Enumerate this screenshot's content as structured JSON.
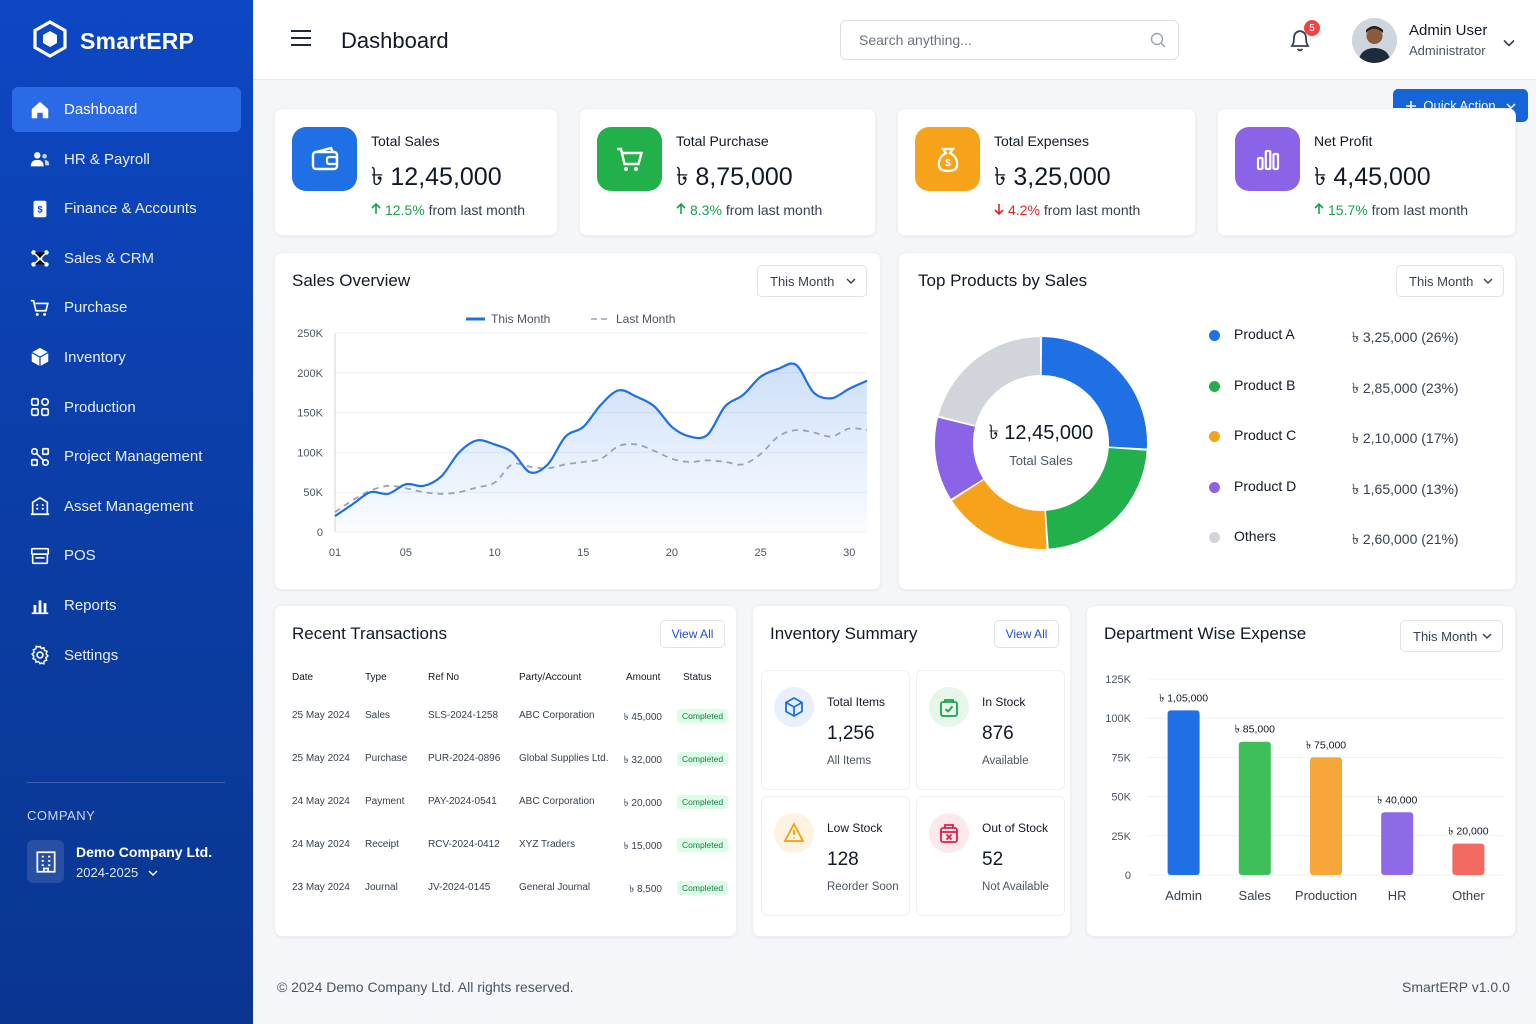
{
  "brand": {
    "name": "SmartERP"
  },
  "nav": [
    {
      "label": "Dashboard",
      "icon": "home-icon",
      "active": true
    },
    {
      "label": "HR & Payroll",
      "icon": "users-icon"
    },
    {
      "label": "Finance & Accounts",
      "icon": "ledger-icon"
    },
    {
      "label": "Sales & CRM",
      "icon": "network-icon"
    },
    {
      "label": "Purchase",
      "icon": "cart-icon"
    },
    {
      "label": "Inventory",
      "icon": "box-icon"
    },
    {
      "label": "Production",
      "icon": "blocks-icon"
    },
    {
      "label": "Project Management",
      "icon": "workflow-icon"
    },
    {
      "label": "Asset Management",
      "icon": "building-icon"
    },
    {
      "label": "POS",
      "icon": "register-icon"
    },
    {
      "label": "Reports",
      "icon": "bar-chart-icon"
    },
    {
      "label": "Settings",
      "icon": "gear-icon"
    }
  ],
  "company": {
    "section_label": "COMPANY",
    "name": "Demo Company Ltd.",
    "year": "2024-2025"
  },
  "header": {
    "title": "Dashboard",
    "search_placeholder": "Search anything...",
    "notification_count": "5",
    "user_name": "Admin User",
    "user_role": "Administrator",
    "quick_action": "Quick Action"
  },
  "kpis": [
    {
      "label": "Total Sales",
      "value": "৳ 12,45,000",
      "change": "12.5%",
      "direction": "up",
      "suffix": "from last month",
      "color": "#1f6fe5",
      "icon": "wallet-icon"
    },
    {
      "label": "Total Purchase",
      "value": "৳ 8,75,000",
      "change": "8.3%",
      "direction": "up",
      "suffix": "from last month",
      "color": "#22b04b",
      "icon": "cart-icon"
    },
    {
      "label": "Total Expenses",
      "value": "৳ 3,25,000",
      "change": "4.2%",
      "direction": "down",
      "suffix": "from last month",
      "color": "#f7a21b",
      "icon": "money-bag-icon"
    },
    {
      "label": "Net Profit",
      "value": "৳ 4,45,000",
      "change": "15.7%",
      "direction": "up",
      "suffix": "from last month",
      "color": "#8a63e6",
      "icon": "bar-chart-icon"
    }
  ],
  "sales_overview": {
    "title": "Sales Overview",
    "filter": "This Month",
    "chart_data": {
      "type": "line",
      "x_ticks": [
        "01",
        "05",
        "10",
        "15",
        "20",
        "25",
        "30"
      ],
      "y_ticks": [
        "250K",
        "200K",
        "150K",
        "100K",
        "50K",
        "0"
      ],
      "ylim": [
        0,
        250000
      ],
      "xlim": [
        1,
        31
      ],
      "series": [
        {
          "name": "This Month",
          "color": "#1f6fe5",
          "points": [
            [
              1,
              20000
            ],
            [
              2,
              35000
            ],
            [
              3,
              50000
            ],
            [
              4,
              48000
            ],
            [
              5,
              60000
            ],
            [
              6,
              58000
            ],
            [
              7,
              70000
            ],
            [
              8,
              100000
            ],
            [
              9,
              115000
            ],
            [
              10,
              110000
            ],
            [
              11,
              100000
            ],
            [
              12,
              75000
            ],
            [
              13,
              85000
            ],
            [
              14,
              120000
            ],
            [
              15,
              132000
            ],
            [
              16,
              160000
            ],
            [
              17,
              178000
            ],
            [
              18,
              170000
            ],
            [
              19,
              158000
            ],
            [
              20,
              132000
            ],
            [
              21,
              120000
            ],
            [
              22,
              122000
            ],
            [
              23,
              158000
            ],
            [
              24,
              172000
            ],
            [
              25,
              195000
            ],
            [
              26,
              205000
            ],
            [
              27,
              210000
            ],
            [
              28,
              175000
            ],
            [
              29,
              168000
            ],
            [
              30,
              180000
            ],
            [
              31,
              190000
            ]
          ]
        },
        {
          "name": "Last Month",
          "color": "#9ca3af",
          "points": [
            [
              1,
              25000
            ],
            [
              2,
              40000
            ],
            [
              3,
              52000
            ],
            [
              4,
              58000
            ],
            [
              5,
              55000
            ],
            [
              6,
              50000
            ],
            [
              7,
              48000
            ],
            [
              8,
              50000
            ],
            [
              9,
              56000
            ],
            [
              10,
              62000
            ],
            [
              11,
              85000
            ],
            [
              12,
              82000
            ],
            [
              13,
              80000
            ],
            [
              14,
              85000
            ],
            [
              15,
              88000
            ],
            [
              16,
              92000
            ],
            [
              17,
              108000
            ],
            [
              18,
              110000
            ],
            [
              19,
              102000
            ],
            [
              20,
              92000
            ],
            [
              21,
              88000
            ],
            [
              22,
              90000
            ],
            [
              23,
              88000
            ],
            [
              24,
              85000
            ],
            [
              25,
              98000
            ],
            [
              26,
              120000
            ],
            [
              27,
              128000
            ],
            [
              28,
              125000
            ],
            [
              29,
              120000
            ],
            [
              30,
              130000
            ],
            [
              31,
              128000
            ]
          ]
        }
      ]
    }
  },
  "top_products": {
    "title": "Top Products by Sales",
    "filter": "This Month",
    "center_value": "৳ 12,45,000",
    "center_label": "Total Sales",
    "chart_data": {
      "type": "pie",
      "slices": [
        {
          "name": "Product A",
          "display": "৳ 3,25,000 (26%)",
          "percent": 26,
          "color": "#1f6fe5"
        },
        {
          "name": "Product B",
          "display": "৳ 2,85,000 (23%)",
          "percent": 23,
          "color": "#22b04b"
        },
        {
          "name": "Product C",
          "display": "৳ 2,10,000 (17%)",
          "percent": 17,
          "color": "#f7a21b"
        },
        {
          "name": "Product D",
          "display": "৳ 1,65,000 (13%)",
          "percent": 13,
          "color": "#8a63e6"
        },
        {
          "name": "Others",
          "display": "৳ 2,60,000 (21%)",
          "percent": 21,
          "color": "#d1d5db"
        }
      ]
    }
  },
  "transactions": {
    "title": "Recent Transactions",
    "view_all": "View All",
    "columns": [
      "Date",
      "Type",
      "Ref No",
      "Party/Account",
      "Amount",
      "Status"
    ],
    "rows": [
      [
        "25 May 2024",
        "Sales",
        "SLS-2024-1258",
        "ABC Corporation",
        "৳ 45,000",
        "Completed"
      ],
      [
        "25 May 2024",
        "Purchase",
        "PUR-2024-0896",
        "Global Supplies Ltd.",
        "৳ 32,000",
        "Completed"
      ],
      [
        "24 May 2024",
        "Payment",
        "PAY-2024-0541",
        "ABC Corporation",
        "৳ 20,000",
        "Completed"
      ],
      [
        "24 May 2024",
        "Receipt",
        "RCV-2024-0412",
        "XYZ Traders",
        "৳ 15,000",
        "Completed"
      ],
      [
        "23 May 2024",
        "Journal",
        "JV-2024-0145",
        "General Journal",
        "৳ 8,500",
        "Completed"
      ]
    ]
  },
  "inventory": {
    "title": "Inventory Summary",
    "view_all": "View All",
    "items": [
      {
        "label": "Total Items",
        "value": "1,256",
        "sub": "All Items",
        "color": "#1f6fe5",
        "bg": "#e8f0fd",
        "icon": "cube-icon"
      },
      {
        "label": "In Stock",
        "value": "876",
        "sub": "Available",
        "color": "#16a34a",
        "bg": "#e6f6ea",
        "icon": "bag-check-icon"
      },
      {
        "label": "Low Stock",
        "value": "128",
        "sub": "Reorder Soon",
        "color": "#f59e0b",
        "bg": "#fef3e0",
        "icon": "warning-icon"
      },
      {
        "label": "Out of Stock",
        "value": "52",
        "sub": "Not Available",
        "color": "#e11d48",
        "bg": "#fde8ec",
        "icon": "box-x-icon"
      }
    ]
  },
  "department": {
    "title": "Department Wise Expense",
    "filter": "This Month",
    "chart_data": {
      "type": "bar",
      "categories": [
        "Admin",
        "Sales",
        "Production",
        "HR",
        "Other"
      ],
      "values": [
        105000,
        85000,
        75000,
        40000,
        20000
      ],
      "labels": [
        "৳ 1,05,000",
        "৳ 85,000",
        "৳ 75,000",
        "৳ 40,000",
        "৳ 20,000"
      ],
      "colors": [
        "#1f6fe5",
        "#3fbf5a",
        "#f7a73a",
        "#8d6ae6",
        "#f36a63"
      ],
      "y_ticks": [
        "125K",
        "100K",
        "75K",
        "50K",
        "25K",
        "0"
      ],
      "ylim": [
        0,
        125000
      ]
    }
  },
  "footer": {
    "copyright": "© 2024 Demo Company Ltd. All rights reserved.",
    "version": "SmartERP v1.0.0"
  }
}
